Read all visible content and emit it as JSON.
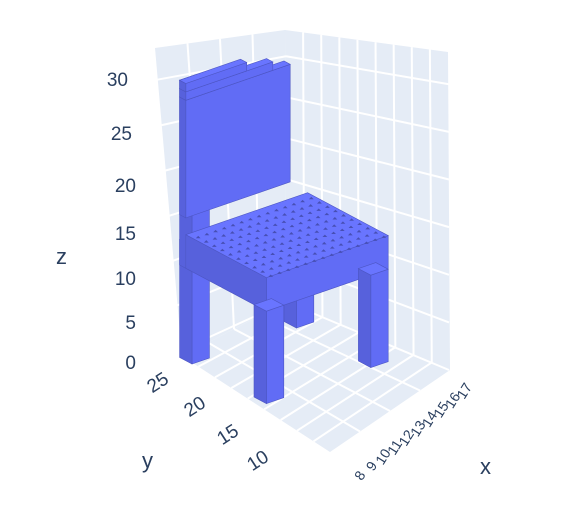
{
  "chart_data": {
    "type": "3d-voxel",
    "title": "",
    "subject": "chair",
    "mark_color": "#636efa",
    "scene_background": "#e5ecf6",
    "grid_color": "#ffffff",
    "axes": {
      "x": {
        "title": "x",
        "ticks": [
          "8",
          "9",
          "10",
          "11",
          "12",
          "13",
          "14",
          "15",
          "16",
          "17"
        ]
      },
      "y": {
        "title": "y",
        "ticks": [
          "10",
          "15",
          "20",
          "25"
        ]
      },
      "z": {
        "title": "z",
        "ticks": [
          "0",
          "5",
          "10",
          "15",
          "20",
          "25",
          "30"
        ]
      }
    }
  }
}
